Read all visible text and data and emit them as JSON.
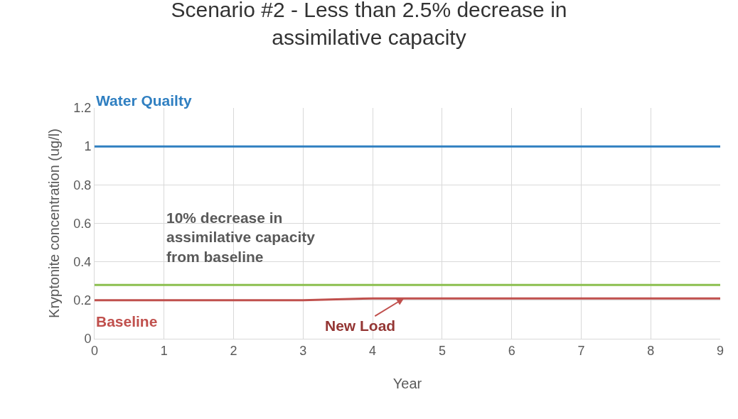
{
  "chart_data": {
    "type": "line",
    "title": "Scenario #2 - Less than 2.5% decrease in assimilative capacity",
    "xlabel": "Year",
    "ylabel": "Kryptonite concentration (ug/l)",
    "x": [
      0,
      1,
      2,
      3,
      4,
      5,
      6,
      7,
      8,
      9
    ],
    "series": [
      {
        "name": "Water Quailty",
        "color": "#2f7fc1",
        "values": [
          1,
          1,
          1,
          1,
          1,
          1,
          1,
          1,
          1,
          1
        ]
      },
      {
        "color": "#8cbf4f",
        "values": [
          0.28,
          0.28,
          0.28,
          0.28,
          0.28,
          0.28,
          0.28,
          0.28,
          0.28,
          0.28
        ]
      },
      {
        "name": "Baseline",
        "color": "#c0504d",
        "values": [
          0.2,
          0.2,
          0.2,
          0.2,
          0.21,
          0.21,
          0.21,
          0.21,
          0.21,
          0.21
        ]
      }
    ],
    "annotations": [
      "10% decrease in assimilative capacity from baseline",
      {
        "text": "New Load",
        "x": 4.45,
        "y": 0.21
      }
    ],
    "xlim": [
      0,
      9
    ],
    "xticks": [
      0,
      1,
      2,
      3,
      4,
      5,
      6,
      7,
      8,
      9
    ],
    "ylim": [
      0,
      1.2
    ],
    "yticks": [
      0,
      0.2,
      0.4,
      0.6,
      0.8,
      1,
      1.2
    ],
    "grid": true,
    "legend": false,
    "marker": "none",
    "line_style": "solid"
  }
}
